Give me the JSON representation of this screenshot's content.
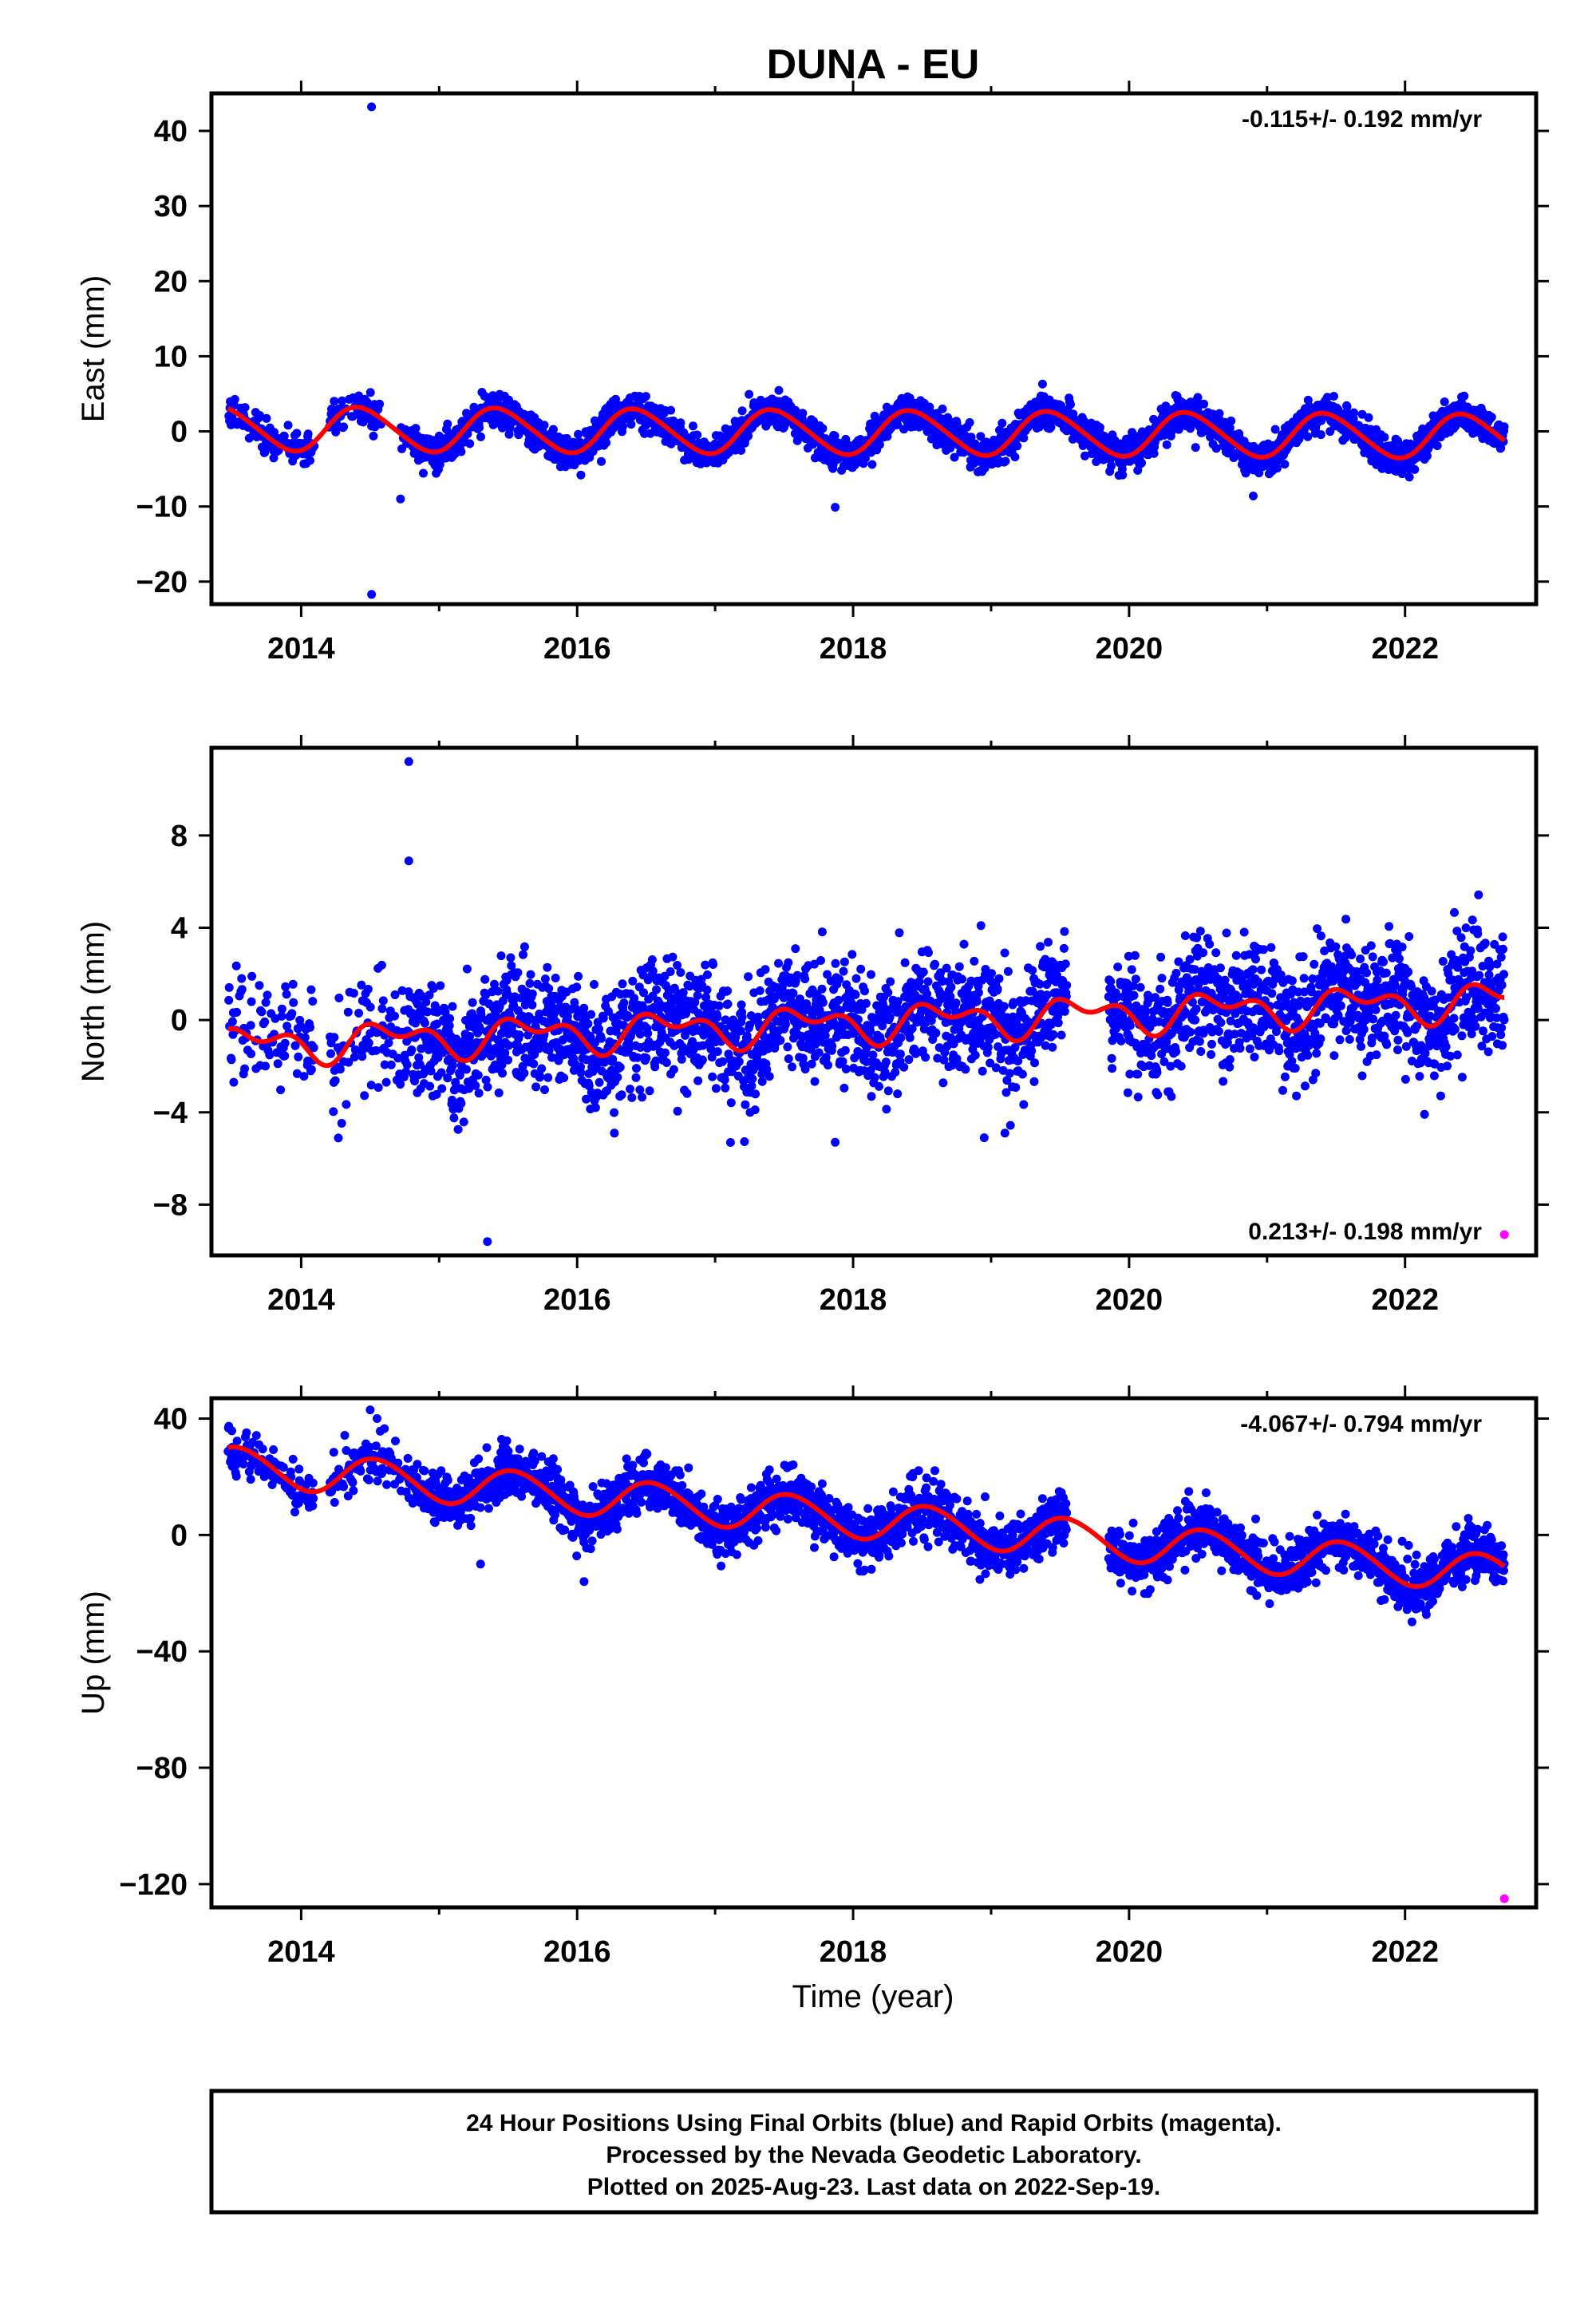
{
  "title": "DUNA - EU",
  "xlabel": "Time (year)",
  "footer": {
    "lines": [
      "24 Hour Positions Using Final Orbits (blue) and Rapid Orbits (magenta).",
      "Processed by the Nevada Geodetic Laboratory.",
      "Plotted on 2025-Aug-23. Last data on 2022-Sep-19."
    ]
  },
  "colors": {
    "final_orbits": "#0000ff",
    "rapid_orbits": "#ff00ff",
    "model_fit": "#ff0000",
    "frame": "#000000"
  },
  "chart_data": [
    {
      "type": "scatter",
      "panel": "east",
      "ylabel": "East (mm)",
      "rate_text": "-0.115+/- 0.192 mm/yr",
      "rate_position": "top-right",
      "xlim": [
        2013.35,
        2022.95
      ],
      "ylim": [
        -23,
        45
      ],
      "xticks": [
        2014,
        2016,
        2018,
        2020,
        2022
      ],
      "xtick_labels": [
        "2014",
        "2016",
        "2018",
        "2020",
        "2022"
      ],
      "yticks": [
        40,
        30,
        20,
        10,
        0,
        -10,
        -20
      ],
      "ytick_labels": [
        "40",
        "30",
        "20",
        "10",
        "0",
        "−10",
        "−20"
      ],
      "data_range": [
        2013.47,
        2022.72
      ],
      "gaps": [
        [
          2014.1,
          2014.2
        ],
        [
          2014.58,
          2014.72
        ]
      ],
      "model": {
        "offset": 0.4,
        "trend": -0.115,
        "annual_amplitude": 2.9,
        "annual_peak": 2013.43,
        "semiannual_amplitude": 0.3,
        "semiannual_peak": 2013.3
      },
      "scatter_sd": 1.1,
      "outliers": [
        [
          2014.51,
          43.2
        ],
        [
          2014.51,
          -21.7
        ],
        [
          2017.87,
          -10.1
        ],
        [
          2020.9,
          -8.6
        ],
        [
          2014.72,
          -9.0
        ]
      ],
      "rapid_points": []
    },
    {
      "type": "scatter",
      "panel": "north",
      "ylabel": "North (mm)",
      "rate_text": "0.213+/- 0.198 mm/yr",
      "rate_position": "bottom-right",
      "xlim": [
        2013.35,
        2022.95
      ],
      "ylim": [
        -10.2,
        11.8
      ],
      "xticks": [
        2014,
        2016,
        2018,
        2020,
        2022
      ],
      "xtick_labels": [
        "2014",
        "2016",
        "2018",
        "2020",
        "2022"
      ],
      "yticks": [
        8,
        4,
        0,
        -4,
        -8
      ],
      "ytick_labels": [
        "8",
        "4",
        "0",
        "−4",
        "−8"
      ],
      "data_range": [
        2013.47,
        2022.72
      ],
      "gaps": [
        [
          2014.1,
          2014.2
        ],
        [
          2019.55,
          2019.85
        ]
      ],
      "model": {
        "offset": -1.1,
        "trend": 0.213,
        "annual_amplitude": 0.6,
        "annual_peak": 2013.65,
        "semiannual_amplitude": 0.45,
        "semiannual_peak": 2013.45
      },
      "scatter_sd": 1.25,
      "outliers": [
        [
          2014.78,
          11.2
        ],
        [
          2014.78,
          6.9
        ],
        [
          2015.35,
          -9.6
        ],
        [
          2017.87,
          -5.3
        ],
        [
          2016.27,
          -4.9
        ],
        [
          2018.95,
          -5.1
        ],
        [
          2019.1,
          -4.9
        ]
      ],
      "rapid_points": [
        [
          2022.72,
          -9.3
        ]
      ]
    },
    {
      "type": "scatter",
      "panel": "up",
      "ylabel": "Up (mm)",
      "rate_text": "-4.067+/- 0.794 mm/yr",
      "rate_position": "top-right",
      "xlim": [
        2013.35,
        2022.95
      ],
      "ylim": [
        -128,
        47
      ],
      "xticks": [
        2014,
        2016,
        2018,
        2020,
        2022
      ],
      "xtick_labels": [
        "2014",
        "2016",
        "2018",
        "2020",
        "2022"
      ],
      "yticks": [
        40,
        0,
        -40,
        -80,
        -120
      ],
      "ytick_labels": [
        "40",
        "0",
        "−40",
        "−80",
        "−120"
      ],
      "data_range": [
        2013.47,
        2022.72
      ],
      "gaps": [
        [
          2014.1,
          2014.2
        ],
        [
          2019.55,
          2019.85
        ]
      ],
      "model": {
        "offset": 24,
        "trend": -4.067,
        "annual_amplitude": 6.5,
        "annual_peak": 2013.55,
        "semiannual_amplitude": 0.5,
        "semiannual_peak": 2013.4
      },
      "scatter_sd": 4.5,
      "outliers": [
        [
          2014.5,
          43
        ],
        [
          2014.55,
          40
        ],
        [
          2015.3,
          -10
        ],
        [
          2016.05,
          -16
        ]
      ],
      "rapid_points": [
        [
          2022.72,
          -125
        ]
      ]
    }
  ]
}
